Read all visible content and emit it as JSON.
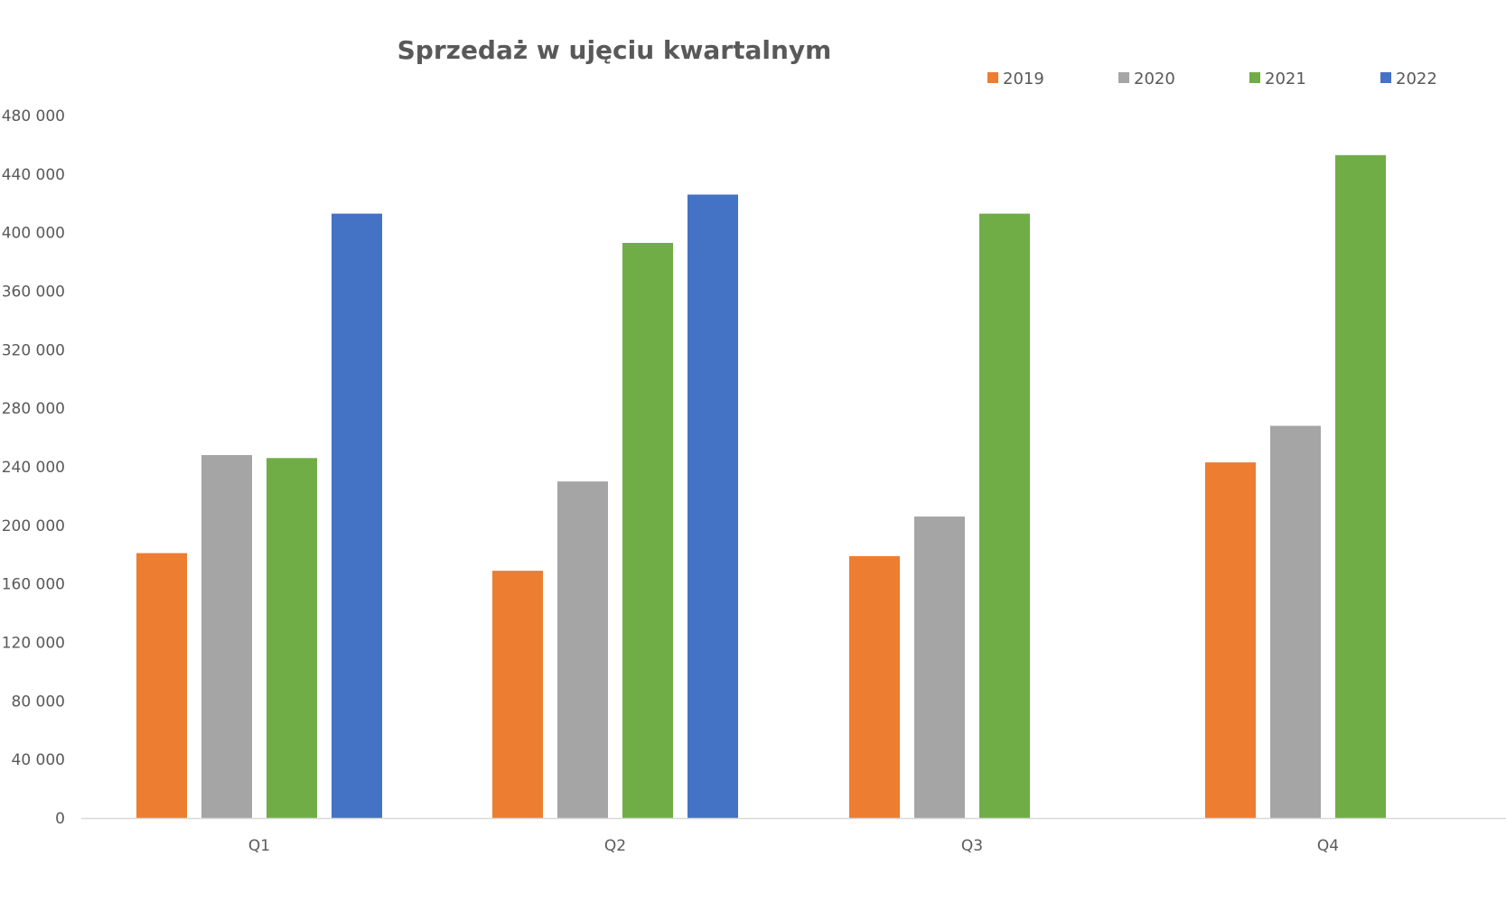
{
  "chart_data": {
    "type": "bar",
    "title": "Sprzedaż w ujęciu kwartalnym",
    "xlabel": "",
    "ylabel": "",
    "categories": [
      "Q1",
      "Q2",
      "Q3",
      "Q4"
    ],
    "ylim": [
      0,
      480000
    ],
    "y_ticks": [
      0,
      40000,
      80000,
      120000,
      160000,
      200000,
      240000,
      280000,
      320000,
      360000,
      400000,
      440000,
      480000
    ],
    "y_tick_labels": [
      "0",
      "40 000",
      "80 000",
      "120 000",
      "160 000",
      "200 000",
      "240 000",
      "280 000",
      "320 000",
      "360 000",
      "400 000",
      "440 000",
      "480 000"
    ],
    "grid": false,
    "legend_position": "top-right",
    "series": [
      {
        "name": "2019",
        "color": "#ED7D31",
        "values": [
          181000,
          169000,
          179000,
          243000
        ]
      },
      {
        "name": "2020",
        "color": "#A5A5A5",
        "values": [
          248000,
          230000,
          206000,
          268000
        ]
      },
      {
        "name": "2021",
        "color": "#70AD47",
        "values": [
          246000,
          393000,
          413000,
          453000
        ]
      },
      {
        "name": "2022",
        "color": "#4472C4",
        "values": [
          413000,
          426000,
          null,
          null
        ]
      }
    ]
  }
}
